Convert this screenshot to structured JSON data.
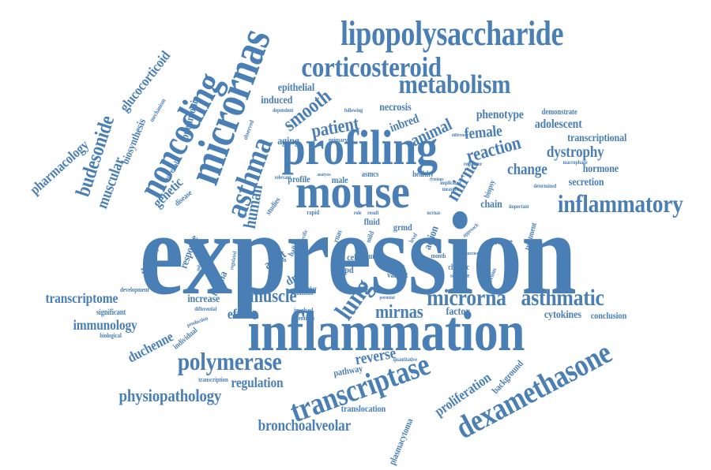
{
  "accent_color": "#4a7fb5",
  "words": [
    "expression",
    "inflammation",
    "mouse",
    "profiling",
    "lipopolysaccharide",
    "corticosteroid",
    "metabolism",
    "micrornas",
    "microrna",
    "noncoding",
    "asthma",
    "asthmatic",
    "inflammatory",
    "dexamethasone",
    "transcriptase",
    "polymerase",
    "lung",
    "muscle",
    "budesonide",
    "glucocorticoid",
    "pharmacology",
    "muscular",
    "biosynthesis",
    "pneumonia",
    "genetic",
    "adrenal",
    "disease",
    "smooth",
    "patient",
    "epithelial",
    "induced",
    "necrosis",
    "inbred",
    "animal",
    "female",
    "reaction",
    "mirna",
    "mirnas",
    "dystrophy",
    "change",
    "phenotype",
    "adolescent",
    "transcriptional",
    "hormone",
    "secretion",
    "chain",
    "lavage",
    "human",
    "aging",
    "profile",
    "male",
    "asmcs",
    "healthy",
    "transcriptome",
    "immunology",
    "duchenne",
    "effect",
    "increase",
    "lncrna",
    "reverse",
    "regulation",
    "physiopathology",
    "bronchoalveolar",
    "translocation",
    "plasmacytoma",
    "proliferation",
    "background",
    "cytokines",
    "conclusion",
    "factor",
    "treatment",
    "therapy",
    "response",
    "adult",
    "drug",
    "copd",
    "cell",
    "tumor",
    "fluid",
    "grmd",
    "action",
    "severe",
    "variant",
    "chronic",
    "sensitive",
    "month",
    "significant",
    "development",
    "individual",
    "biological",
    "pathway",
    "transcription",
    "identifies",
    "involved",
    "immune",
    "smoker",
    "production",
    "differential",
    "regulated",
    "subsequent",
    "quantitative",
    "potential",
    "studies",
    "observed",
    "following",
    "dependent",
    "mechanism",
    "primary",
    "regulator",
    "implicated",
    "measure",
    "determined",
    "macrophage",
    "important",
    "demonstrate",
    "relevant",
    "analysis",
    "cytokine",
    "biopsy",
    "rapid",
    "role",
    "result",
    "protein",
    "balb",
    "specific",
    "level",
    "approach",
    "mild",
    "previous",
    "difference",
    "function",
    "ncrnas",
    "rnas"
  ]
}
